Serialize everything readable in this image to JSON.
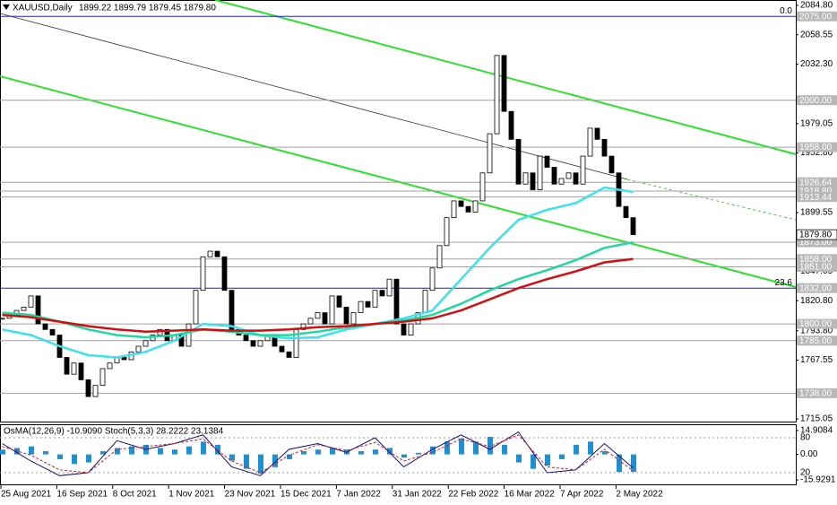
{
  "chart_data": {
    "type": "candlestick",
    "title": "XAUUSD,Daily",
    "ohlc_header": "1899.22 1899.79 1879.45 1879.80",
    "up_color": "#ffffff",
    "down_color": "#000000",
    "ylim": [
      1715.05,
      2084.8
    ],
    "yticks": [
      {
        "value": 2084.8,
        "label": "2084.80"
      },
      2058.55,
      {
        "value": 2032.3,
        "label": "2032.30"
      },
      1979.05,
      {
        "value": 1952.8,
        "label": "1952.80"
      },
      1899.55,
      1847.05,
      {
        "value": 1820.8,
        "label": "1820.80"
      },
      {
        "value": 1793.8,
        "label": "1793.80"
      },
      1767.55,
      1715.05
    ],
    "x_labels": [
      "25 Aug 2021",
      "16 Sep 2021",
      "8 Oct 2021",
      "1 Nov 2021",
      "23 Nov 2021",
      "15 Dec 2021",
      "7 Jan 2022",
      "31 Jan 2022",
      "22 Feb 2022",
      "16 Mar 2022",
      "7 Apr 2022",
      "2 May 2022"
    ],
    "close": [
      1805,
      1808,
      1812,
      1815,
      1825,
      1800,
      1795,
      1790,
      1770,
      1755,
      1765,
      1750,
      1735,
      1745,
      1760,
      1765,
      1770,
      1768,
      1775,
      1780,
      1785,
      1790,
      1795,
      1785,
      1790,
      1780,
      1800,
      1830,
      1860,
      1865,
      1860,
      1830,
      1795,
      1790,
      1785,
      1780,
      1785,
      1790,
      1780,
      1775,
      1770,
      1795,
      1800,
      1805,
      1810,
      1800,
      1825,
      1815,
      1800,
      1810,
      1820,
      1815,
      1830,
      1825,
      1840,
      1800,
      1790,
      1800,
      1810,
      1830,
      1850,
      1870,
      1895,
      1910,
      1905,
      1900,
      1910,
      1935,
      1970,
      2040,
      1990,
      1965,
      1925,
      1935,
      1920,
      1950,
      1940,
      1925,
      1930,
      1935,
      1925,
      1950,
      1975,
      1965,
      1950,
      1935,
      1905,
      1895,
      1879.8
    ],
    "series": [
      {
        "color": "#3ee0f0",
        "values": [
          1795,
          1790,
          1780,
          1772,
          1770,
          1775,
          1785,
          1800,
          1798,
          1790,
          1787,
          1788,
          1795,
          1800,
          1805,
          1812,
          1840,
          1868,
          1893,
          1902,
          1908,
          1922,
          1918
        ]
      },
      {
        "color": "#20d8a0",
        "values": [
          1810,
          1808,
          1802,
          1795,
          1790,
          1788,
          1790,
          1795,
          1793,
          1790,
          1790,
          1793,
          1797,
          1800,
          1803,
          1808,
          1818,
          1830,
          1840,
          1848,
          1857,
          1868,
          1873
        ]
      },
      {
        "color": "#d01010",
        "values": [
          1808,
          1806,
          1802,
          1798,
          1795,
          1793,
          1794,
          1795,
          1794,
          1794,
          1795,
          1797,
          1798,
          1800,
          1802,
          1805,
          1812,
          1822,
          1832,
          1840,
          1847,
          1855,
          1858
        ]
      }
    ],
    "levels": [
      {
        "value": 2075,
        "label": "2075.00",
        "color": "#2020c0"
      },
      {
        "value": 2000,
        "label": "2000.00",
        "color": "#a0a0a0"
      },
      {
        "value": 1958,
        "label": "1958.00",
        "color": "#a0a0a0"
      },
      {
        "value": 1926.64,
        "label": "1926.64",
        "color": "#a0a0a0"
      },
      {
        "value": 1918.8,
        "label": "1918.80",
        "color": "#a0a0a0"
      },
      {
        "value": 1913.44,
        "label": "1913.44",
        "color": "#a0a0a0"
      },
      {
        "value": 1873,
        "label": "1873.00",
        "color": "#a0a0a0"
      },
      {
        "value": 1858,
        "label": "1858.00",
        "color": "#a0a0a0"
      },
      {
        "value": 1851,
        "label": "1851.00",
        "color": "#a0a0a0"
      },
      {
        "value": 1832,
        "label": "1832.00",
        "color": "#2020c0"
      },
      {
        "value": 1800,
        "label": "1800.00",
        "color": "#a0a0a0"
      },
      {
        "value": 1785,
        "label": "1785.00",
        "color": "#a0a0a0"
      },
      {
        "value": 1738,
        "label": "1738.00",
        "color": "#a0a0a0"
      },
      {
        "value": 1879.8,
        "label": "1879.80",
        "color": "#ffffff"
      }
    ],
    "fib_labels": [
      {
        "value": 2075,
        "label": "0.0"
      },
      {
        "value": 1832,
        "label": "23.6"
      }
    ],
    "indicator": {
      "title": "OsMA(12,26,9) -10.9090 Stoch(5,3,3) 28.2222 23.1384",
      "ylim": [
        -15.9291,
        14.9084
      ],
      "yticks": [
        {
          "value": 14.9084,
          "label": "14.9084"
        },
        {
          "value": 0,
          "label": "0.00"
        },
        {
          "value": -15.9291,
          "label": "-15.9291"
        }
      ],
      "y2lim": [
        0,
        100
      ],
      "y2ticks": [
        80,
        20
      ],
      "osma_color": "#1e90d0",
      "osma": [
        3,
        4,
        5,
        2,
        -3,
        -6,
        -5,
        2,
        4,
        5,
        6,
        4,
        3,
        5,
        8,
        6,
        -4,
        -9,
        -12,
        -8,
        -3,
        2,
        3,
        4,
        3,
        2,
        3,
        4,
        -2,
        1,
        5,
        8,
        10,
        8,
        11,
        6,
        -5,
        -9,
        -7,
        -3,
        6,
        8,
        2,
        -11,
        -10.909
      ],
      "stoch": [
        {
          "color": "#101080",
          "values": [
            70,
            40,
            15,
            20,
            75,
            60,
            70,
            85,
            30,
            15,
            60,
            70,
            55,
            80,
            30,
            60,
            85,
            60,
            90,
            20,
            25,
            70,
            28.2222
          ]
        },
        {
          "color": "#d02020",
          "values": [
            65,
            50,
            25,
            20,
            60,
            65,
            70,
            78,
            40,
            20,
            50,
            68,
            58,
            72,
            40,
            55,
            78,
            65,
            85,
            30,
            25,
            60,
            23.1384
          ]
        }
      ]
    }
  }
}
